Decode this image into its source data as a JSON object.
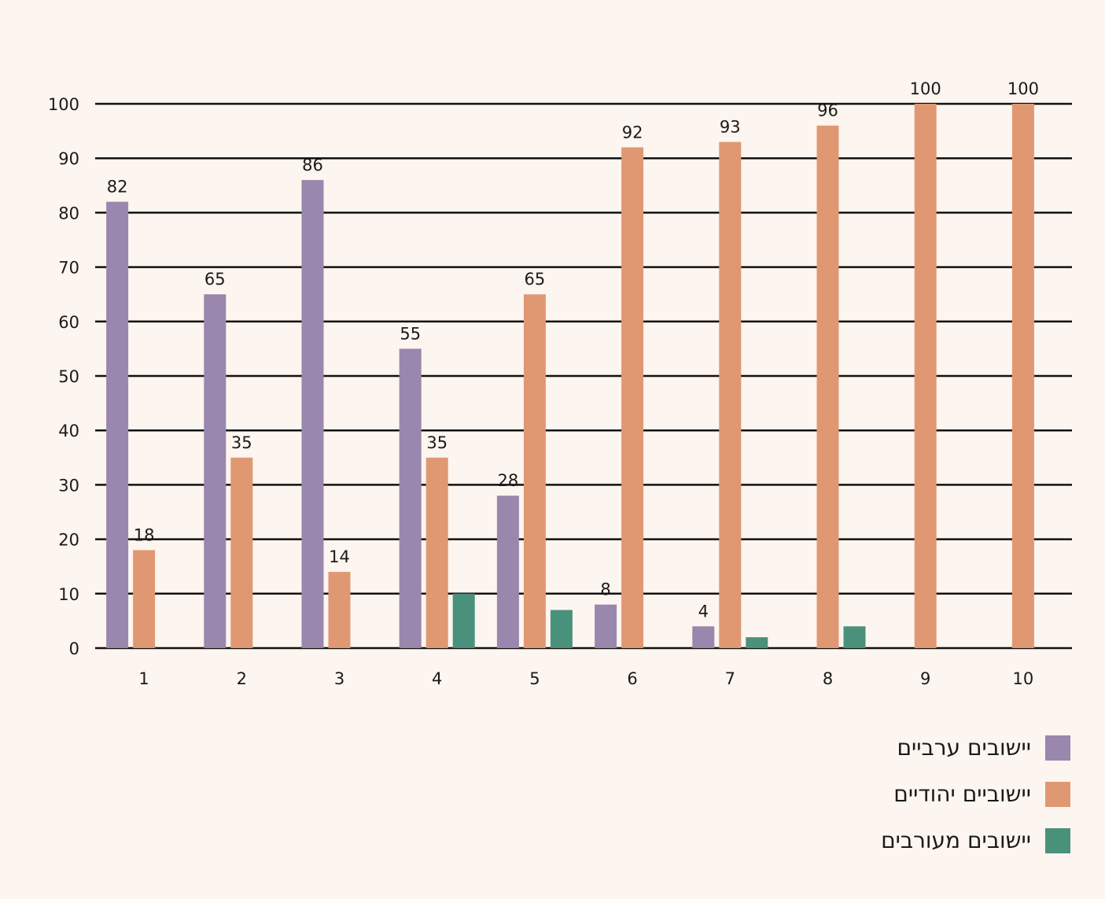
{
  "chart_data": {
    "type": "bar",
    "categories": [
      "1",
      "2",
      "3",
      "4",
      "5",
      "6",
      "7",
      "8",
      "9",
      "10"
    ],
    "series": [
      {
        "name": "יישובים ערביים",
        "color": "#9a87ad",
        "values": [
          82,
          65,
          86,
          55,
          28,
          8,
          4,
          null,
          null,
          null
        ]
      },
      {
        "name": "יישוביים יהודיים",
        "color": "#e09873",
        "values": [
          18,
          35,
          14,
          35,
          65,
          92,
          93,
          96,
          100,
          100
        ]
      },
      {
        "name": "יישובים מעורבים",
        "color": "#4a917b",
        "values": [
          null,
          null,
          null,
          10,
          7,
          null,
          2,
          4,
          null,
          null
        ]
      }
    ],
    "ylim": [
      0,
      100
    ],
    "yticks": [
      0,
      10,
      20,
      30,
      40,
      50,
      60,
      70,
      80,
      90,
      100
    ],
    "grid": true,
    "legend_position": "bottom-right",
    "title": "",
    "xlabel": "",
    "ylabel": ""
  }
}
